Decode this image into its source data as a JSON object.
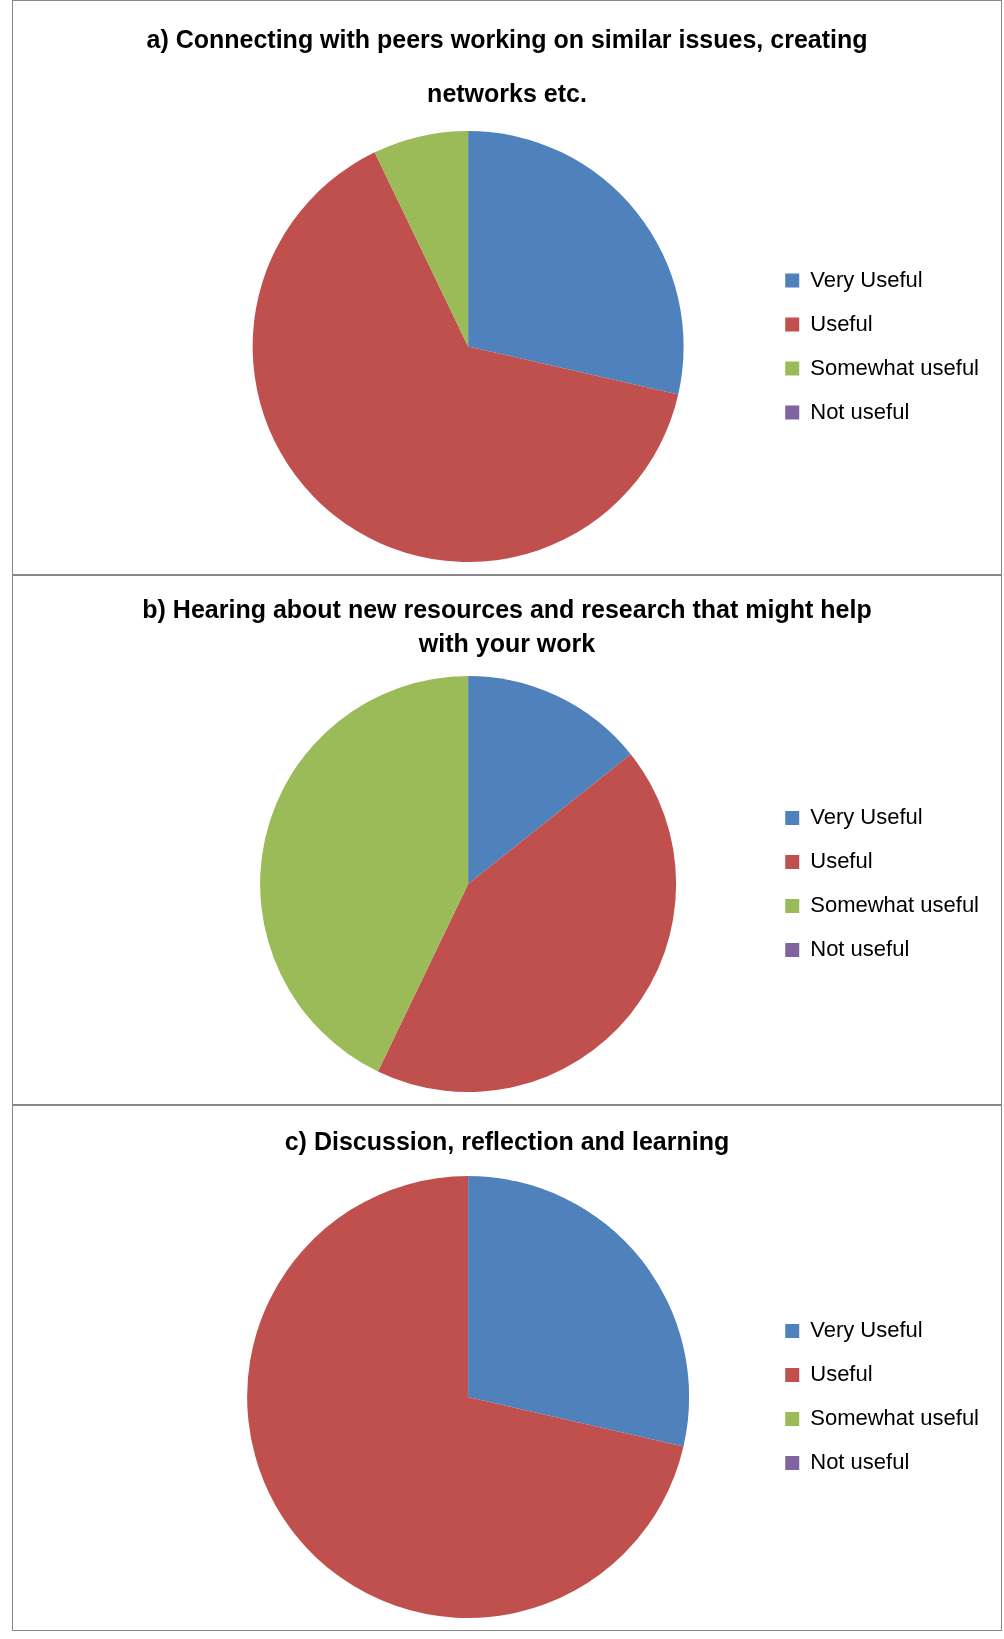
{
  "chart_data": [
    {
      "type": "pie",
      "title": "a) Connecting with peers working on similar issues, creating networks etc.",
      "categories": [
        "Very Useful",
        "Useful",
        "Somewhat useful",
        "Not useful"
      ],
      "values": [
        28.57,
        64.29,
        7.14,
        0
      ],
      "colors": [
        "#4f81bd",
        "#c0504d",
        "#9bbb59",
        "#8064a2"
      ],
      "legend": "right"
    },
    {
      "type": "pie",
      "title": "b) Hearing about new resources and research that might help with your work",
      "categories": [
        "Very Useful",
        "Useful",
        "Somewhat useful",
        "Not useful"
      ],
      "values": [
        14.28,
        42.86,
        42.86,
        0
      ],
      "colors": [
        "#4f81bd",
        "#c0504d",
        "#9bbb59",
        "#8064a2"
      ],
      "legend": "right"
    },
    {
      "type": "pie",
      "title": "c) Discussion, reflection and learning",
      "categories": [
        "Very Useful",
        "Useful",
        "Somewhat useful",
        "Not useful"
      ],
      "values": [
        28.6,
        71.4,
        0,
        0
      ],
      "colors": [
        "#4f81bd",
        "#c0504d",
        "#9bbb59",
        "#8064a2"
      ],
      "legend": "right"
    }
  ]
}
